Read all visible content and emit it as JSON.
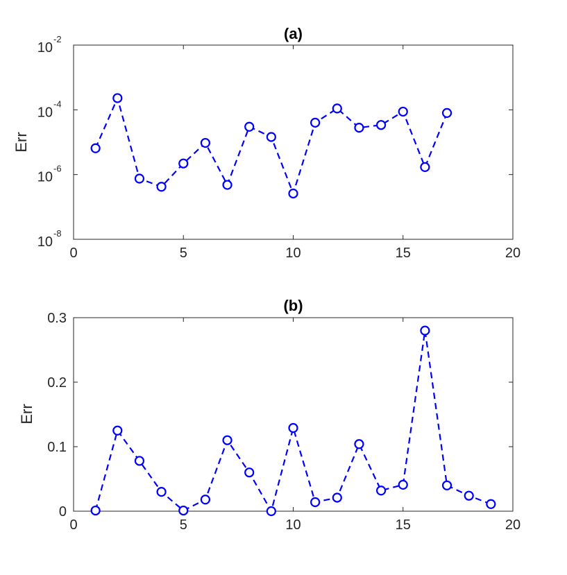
{
  "colors": {
    "series": "#0000ff",
    "axis": "#262626"
  },
  "chart_data": [
    {
      "type": "line",
      "title": "(a)",
      "xlabel": "",
      "ylabel": "Err",
      "xlim": [
        0,
        20
      ],
      "ylim": [
        1e-08,
        0.01
      ],
      "yscale": "log",
      "xticks": [
        0,
        5,
        10,
        15,
        20
      ],
      "yticks": [
        {
          "value": 1e-08,
          "base": "10",
          "exp": "-8"
        },
        {
          "value": 1e-06,
          "base": "10",
          "exp": "-6"
        },
        {
          "value": 0.0001,
          "base": "10",
          "exp": "-4"
        },
        {
          "value": 0.01,
          "base": "10",
          "exp": "-2"
        }
      ],
      "grid": false,
      "line_style": "dashed",
      "marker": "open-circle",
      "x": [
        1,
        2,
        3,
        4,
        5,
        6,
        7,
        8,
        9,
        10,
        11,
        12,
        13,
        14,
        15,
        16,
        17
      ],
      "y": [
        6.5e-06,
        0.00023,
        7.5e-07,
        4.2e-07,
        2.2e-06,
        9.5e-06,
        4.8e-07,
        3e-05,
        1.45e-05,
        2.6e-07,
        4e-05,
        0.00011,
        2.8e-05,
        3.4e-05,
        8.8e-05,
        1.7e-06,
        8e-05
      ]
    },
    {
      "type": "line",
      "title": "(b)",
      "xlabel": "",
      "ylabel": "Err",
      "xlim": [
        0,
        20
      ],
      "ylim": [
        0,
        0.3
      ],
      "yscale": "linear",
      "xticks": [
        0,
        5,
        10,
        15,
        20
      ],
      "yticks": [
        {
          "value": 0,
          "label": "0"
        },
        {
          "value": 0.1,
          "label": "0.1"
        },
        {
          "value": 0.2,
          "label": "0.2"
        },
        {
          "value": 0.3,
          "label": "0.3"
        }
      ],
      "grid": false,
      "line_style": "dashed",
      "marker": "open-circle",
      "x": [
        1,
        2,
        3,
        4,
        5,
        6,
        7,
        8,
        9,
        10,
        11,
        12,
        13,
        14,
        15,
        16,
        17,
        18,
        19
      ],
      "y": [
        0.001,
        0.125,
        0.078,
        0.03,
        0.001,
        0.018,
        0.11,
        0.06,
        0.0,
        0.129,
        0.014,
        0.021,
        0.104,
        0.032,
        0.041,
        0.28,
        0.04,
        0.024,
        0.011
      ]
    }
  ]
}
